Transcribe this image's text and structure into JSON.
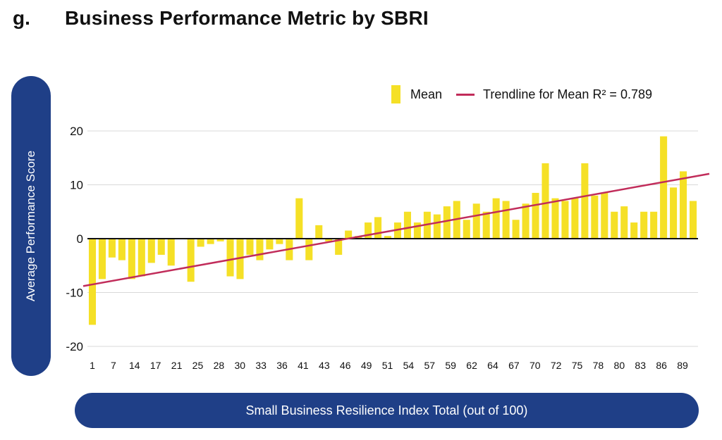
{
  "header": {
    "label": "g.",
    "title": "Business Performance Metric by SBRI"
  },
  "colors": {
    "bar": "#f5e026",
    "trend": "#c12c5a",
    "pill": "#1f3f87",
    "grid": "#d9d9d9",
    "zero": "#111111"
  },
  "legend": {
    "mean": "Mean",
    "trend": "Trendline for Mean R² = 0.789"
  },
  "chart_data": {
    "type": "bar",
    "title": "Business Performance Metric by SBRI",
    "xlabel": "Small Business Resilience Index Total (out of 100)",
    "ylabel": "Average Performance Score",
    "ylim": [
      -20,
      20
    ],
    "yticks": [
      20,
      10,
      0,
      -10,
      -20
    ],
    "grid": true,
    "legend_position": "top-right",
    "x_tick_labels": [
      "1",
      "7",
      "14",
      "17",
      "21",
      "25",
      "28",
      "30",
      "33",
      "36",
      "41",
      "43",
      "46",
      "49",
      "51",
      "54",
      "57",
      "59",
      "62",
      "64",
      "67",
      "70",
      "72",
      "75",
      "78",
      "80",
      "83",
      "86",
      "89"
    ],
    "series": [
      {
        "name": "Mean",
        "values": [
          -16.0,
          -7.5,
          -3.5,
          -4.0,
          -7.5,
          -7.0,
          -4.5,
          -3.0,
          -5.0,
          0.0,
          -8.0,
          -1.5,
          -1.0,
          -0.5,
          -7.0,
          -7.5,
          -3.0,
          -4.0,
          -2.0,
          -1.0,
          -4.0,
          7.5,
          -4.0,
          2.5,
          -0.5,
          -3.0,
          1.5,
          0.5,
          3.0,
          4.0,
          0.5,
          3.0,
          5.0,
          3.0,
          5.0,
          4.5,
          6.0,
          7.0,
          3.5,
          6.5,
          5.0,
          7.5,
          7.0,
          3.5,
          6.5,
          8.5,
          14.0,
          7.5,
          7.0,
          7.5,
          14.0,
          8.0,
          8.5,
          5.0,
          6.0,
          3.0,
          5.0,
          5.0,
          19.0,
          9.5,
          12.5,
          7.0
        ]
      }
    ],
    "trendline": {
      "name": "Trendline for Mean",
      "r_squared": 0.789,
      "start": -8.5,
      "end": 11.5
    }
  }
}
